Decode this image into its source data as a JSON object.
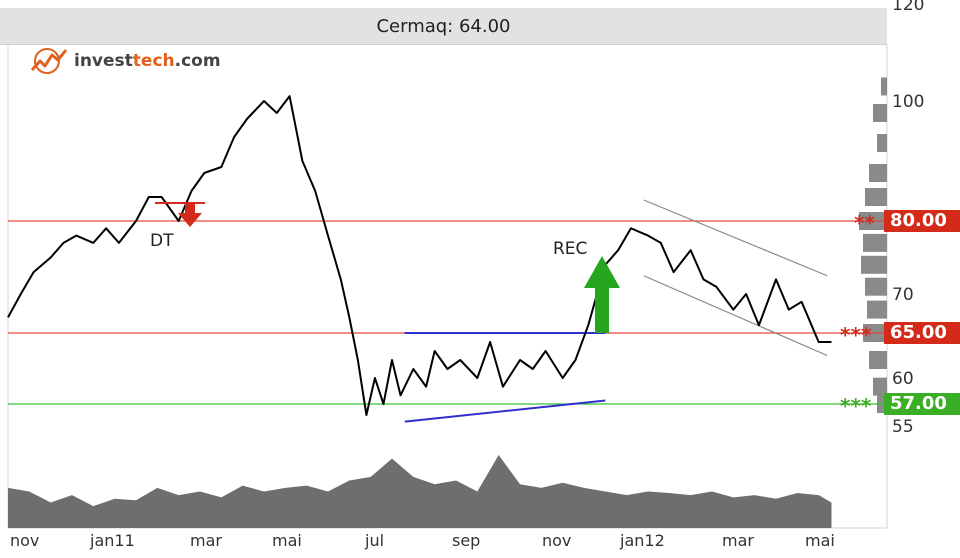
{
  "title": "Cermaq: 64.00",
  "logo": {
    "prefix": "invest",
    "accent": "tech",
    "suffix": ".com"
  },
  "colors": {
    "price_line": "#000000",
    "resistance": "#e8483f",
    "support": "#35c035",
    "trend_lines": "#3030d0",
    "channel": "#888888",
    "volume": "#6e6e6e",
    "histogram": "#8a8a8a",
    "red_box": "#d42a1a",
    "green_box": "#3aae24"
  },
  "levels": [
    {
      "label": "80.00",
      "stars": "**",
      "color": "red",
      "value": 80
    },
    {
      "label": "65.00",
      "stars": "***",
      "color": "red",
      "value": 65
    },
    {
      "label": "57.00",
      "stars": "***",
      "color": "green",
      "value": 57
    }
  ],
  "annotations": [
    {
      "text": "DT",
      "signal": "sell"
    },
    {
      "text": "REC",
      "signal": "buy"
    }
  ],
  "chart_data": {
    "type": "line",
    "title": "Cermaq: 64.00",
    "y_axis_side": "right",
    "y_ticks": [
      "120",
      "100",
      "70",
      "60",
      "55"
    ],
    "y_tick_values": [
      120,
      100,
      70,
      60,
      55
    ],
    "x_ticks": [
      "nov",
      "jan11",
      "mar",
      "mai",
      "jul",
      "sep",
      "nov",
      "jan12",
      "mar",
      "mai"
    ],
    "x_range": [
      0,
      19.5
    ],
    "ylim": [
      52,
      120
    ],
    "price": {
      "x": [
        0,
        0.3,
        0.6,
        1.0,
        1.3,
        1.6,
        2.0,
        2.3,
        2.6,
        3.0,
        3.3,
        3.6,
        4.0,
        4.3,
        4.6,
        5.0,
        5.3,
        5.6,
        6.0,
        6.3,
        6.6,
        6.9,
        7.2,
        7.5,
        7.8,
        8.0,
        8.2,
        8.4,
        8.6,
        8.8,
        9.0,
        9.2,
        9.5,
        9.8,
        10.0,
        10.3,
        10.6,
        11.0,
        11.3,
        11.6,
        12.0,
        12.3,
        12.6,
        13.0,
        13.3,
        13.6,
        14.0,
        14.3,
        14.6,
        15.0,
        15.3,
        15.6,
        16.0,
        16.3,
        16.6,
        17.0,
        17.3,
        17.6,
        18.0,
        18.3,
        18.6,
        19.0,
        19.3
      ],
      "y": [
        67,
        70,
        73,
        75,
        77,
        78,
        77,
        79,
        77,
        80,
        84,
        84,
        80,
        85,
        88,
        89,
        94,
        97,
        100,
        98,
        101,
        90,
        85,
        78,
        72,
        67,
        62,
        56,
        60,
        57,
        62,
        58,
        61,
        59,
        63,
        61,
        62,
        60,
        64,
        59,
        62,
        61,
        63,
        60,
        62,
        66,
        74,
        76,
        79,
        78,
        77,
        73,
        76,
        72,
        71,
        68,
        70,
        66,
        72,
        68,
        69,
        64,
        64
      ]
    },
    "volume": {
      "x": [
        0,
        0.5,
        1,
        1.5,
        2,
        2.5,
        3,
        3.5,
        4,
        4.5,
        5,
        5.5,
        6,
        6.5,
        7,
        7.5,
        8,
        8.5,
        9,
        9.5,
        10,
        10.5,
        11,
        11.5,
        12,
        12.5,
        13,
        13.5,
        14,
        14.5,
        15,
        15.5,
        16,
        16.5,
        17,
        17.5,
        18,
        18.5,
        19,
        19.3
      ],
      "y": [
        0.55,
        0.5,
        0.35,
        0.45,
        0.3,
        0.4,
        0.38,
        0.55,
        0.45,
        0.5,
        0.42,
        0.58,
        0.5,
        0.55,
        0.58,
        0.5,
        0.65,
        0.7,
        0.95,
        0.7,
        0.6,
        0.65,
        0.5,
        1.0,
        0.6,
        0.55,
        0.62,
        0.55,
        0.5,
        0.45,
        0.5,
        0.48,
        0.45,
        0.5,
        0.42,
        0.45,
        0.4,
        0.48,
        0.45,
        0.35
      ]
    },
    "resistance_lines": [
      80,
      65
    ],
    "support_lines": [
      57
    ],
    "trend_line_top": {
      "x": [
        9.3,
        14.0
      ],
      "y": [
        65,
        65
      ]
    },
    "trend_line_bottom": {
      "x": [
        9.3,
        14.0
      ],
      "y": [
        55.4,
        57.4
      ]
    },
    "channel_upper": {
      "x": [
        14.9,
        19.2
      ],
      "y": [
        83.5,
        72.5
      ]
    },
    "channel_lower": {
      "x": [
        14.9,
        19.2
      ],
      "y": [
        72.5,
        62.5
      ]
    },
    "grid": false
  }
}
